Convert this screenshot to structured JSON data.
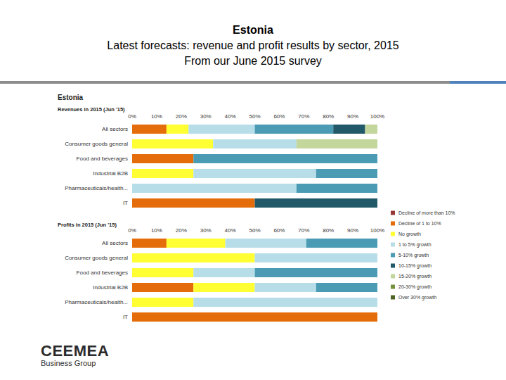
{
  "header": {
    "lines": [
      "Estonia",
      "Latest forecasts: revenue and profit results by sector, 2015",
      "From our June 2015 survey"
    ]
  },
  "panel_title": "Estonia",
  "logo": [
    "CEEMEA",
    "Business Group"
  ],
  "chart_data": [
    {
      "type": "bar",
      "orientation": "horizontal",
      "stacked": true,
      "legend": "right",
      "grid": false,
      "title": "Revenues in 2015 (Jun '15)",
      "categories": [
        "All sectors",
        "Consumer goods general",
        "Food and beverages",
        "Industrial B2B",
        "Pharmaceuticals/health...",
        "IT"
      ],
      "xlim": [
        0,
        100
      ],
      "xticks": [
        {
          "value": 0,
          "label": "0%"
        },
        {
          "value": 10,
          "label": "10%"
        },
        {
          "value": 20,
          "label": "20%"
        },
        {
          "value": 30,
          "label": "30%"
        },
        {
          "value": 40,
          "label": "40%"
        },
        {
          "value": 50,
          "label": "50%"
        },
        {
          "value": 60,
          "label": "60%"
        },
        {
          "value": 70,
          "label": "70%"
        },
        {
          "value": 80,
          "label": "80%"
        },
        {
          "value": 90,
          "label": "90%"
        },
        {
          "value": 100,
          "label": "100%"
        }
      ],
      "series": [
        {
          "name": "Decline of more than 10%",
          "color": "#953735",
          "values": [
            0,
            0,
            0,
            0,
            0,
            0
          ]
        },
        {
          "name": "Decline of 1 to 10%",
          "color": "#e46c0a",
          "values": [
            14,
            0,
            25,
            0,
            0,
            50
          ]
        },
        {
          "name": "No growth",
          "color": "#ffff33",
          "values": [
            9,
            33,
            0,
            25,
            0,
            0
          ]
        },
        {
          "name": "1 to 5% growth",
          "color": "#b7dde8",
          "values": [
            27,
            34,
            0,
            50,
            67,
            0
          ]
        },
        {
          "name": "5-10% growth",
          "color": "#4a9bb3",
          "values": [
            32,
            0,
            75,
            25,
            33,
            0
          ]
        },
        {
          "name": "10-15% growth",
          "color": "#215968",
          "values": [
            13,
            0,
            0,
            0,
            0,
            50
          ]
        },
        {
          "name": "15-20% growth",
          "color": "#c3d69b",
          "values": [
            5,
            33,
            0,
            0,
            0,
            0
          ]
        },
        {
          "name": "20-30% growth",
          "color": "#76923c",
          "values": [
            0,
            0,
            0,
            0,
            0,
            0
          ]
        },
        {
          "name": "Over 30% growth",
          "color": "#4f6228",
          "values": [
            0,
            0,
            0,
            0,
            0,
            0
          ]
        }
      ]
    },
    {
      "type": "bar",
      "orientation": "horizontal",
      "stacked": true,
      "grid": false,
      "title": "Profits in 2015 (Jun '15)",
      "categories": [
        "All sectors",
        "Consumer goods general",
        "Food and beverages",
        "Industrial B2B",
        "Pharmaceuticals/health...",
        "IT"
      ],
      "xlim": [
        0,
        100
      ],
      "xticks": [
        {
          "value": 0,
          "label": "0%"
        },
        {
          "value": 10,
          "label": "10%"
        },
        {
          "value": 20,
          "label": "20%"
        },
        {
          "value": 30,
          "label": "30%"
        },
        {
          "value": 40,
          "label": "40%"
        },
        {
          "value": 50,
          "label": "50%"
        },
        {
          "value": 60,
          "label": "60%"
        },
        {
          "value": 70,
          "label": "70%"
        },
        {
          "value": 80,
          "label": "80%"
        },
        {
          "value": 90,
          "label": "90%"
        },
        {
          "value": 100,
          "label": "100%"
        }
      ],
      "series": [
        {
          "name": "Decline of more than 10%",
          "color": "#953735",
          "values": [
            0,
            0,
            0,
            0,
            0,
            0
          ]
        },
        {
          "name": "Decline of 1 to 10%",
          "color": "#e46c0a",
          "values": [
            14,
            0,
            0,
            25,
            0,
            100
          ]
        },
        {
          "name": "No growth",
          "color": "#ffff33",
          "values": [
            24,
            50,
            25,
            25,
            25,
            0
          ]
        },
        {
          "name": "1 to 5% growth",
          "color": "#b7dde8",
          "values": [
            33,
            50,
            25,
            25,
            75,
            0
          ]
        },
        {
          "name": "5-10% growth",
          "color": "#4a9bb3",
          "values": [
            29,
            0,
            50,
            25,
            0,
            0
          ]
        },
        {
          "name": "10-15% growth",
          "color": "#215968",
          "values": [
            0,
            0,
            0,
            0,
            0,
            0
          ]
        },
        {
          "name": "15-20% growth",
          "color": "#c3d69b",
          "values": [
            0,
            0,
            0,
            0,
            0,
            0
          ]
        },
        {
          "name": "20-30% growth",
          "color": "#76923c",
          "values": [
            0,
            0,
            0,
            0,
            0,
            0
          ]
        },
        {
          "name": "Over 30% growth",
          "color": "#4f6228",
          "values": [
            0,
            0,
            0,
            0,
            0,
            0
          ]
        }
      ]
    }
  ]
}
